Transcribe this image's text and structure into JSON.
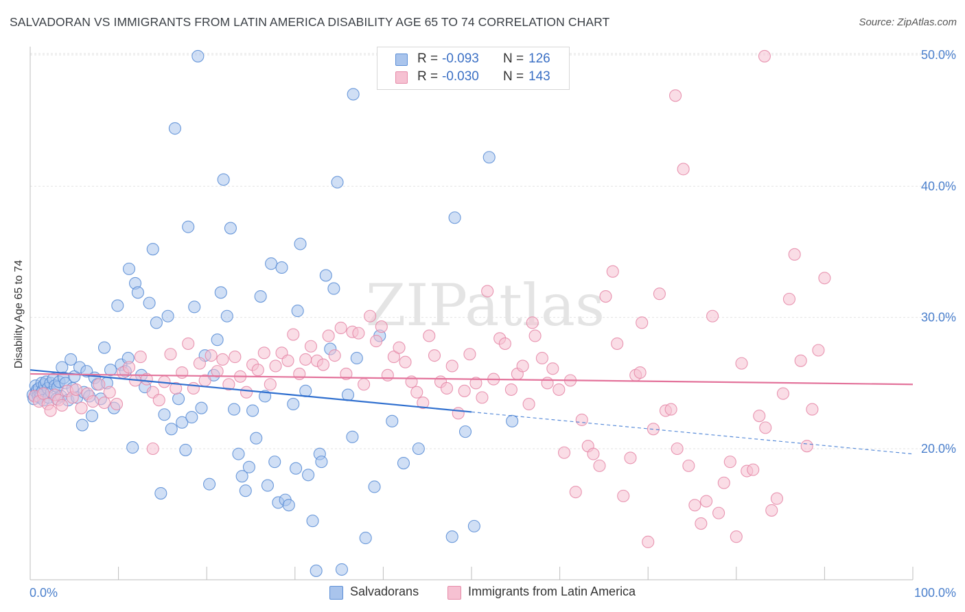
{
  "title": "SALVADORAN VS IMMIGRANTS FROM LATIN AMERICA DISABILITY AGE 65 TO 74 CORRELATION CHART",
  "source": "Source: ZipAtlas.com",
  "watermark": "ZIPatlas",
  "legend_top": [
    {
      "r_label": "R =",
      "r_value": "-0.093",
      "n_label": "N =",
      "n_value": "126",
      "color": "#a9c4ec",
      "border": "#5b8ed6"
    },
    {
      "r_label": "R =",
      "r_value": "-0.030",
      "n_label": "N =",
      "n_value": "143",
      "color": "#f6c1d2",
      "border": "#e68aa8"
    }
  ],
  "legend_bottom": [
    {
      "label": "Salvadorans",
      "color": "#a9c4ec",
      "border": "#5b8ed6"
    },
    {
      "label": "Immigrants from Latin America",
      "color": "#f6c1d2",
      "border": "#e68aa8"
    }
  ],
  "x_axis": {
    "left_label": "0.0%",
    "right_label": "100.0%"
  },
  "chart_data": {
    "type": "scatter",
    "title": "SALVADORAN VS IMMIGRANTS FROM LATIN AMERICA DISABILITY AGE 65 TO 74 CORRELATION CHART",
    "xlabel": "",
    "ylabel": "Disability Age 65 to 74",
    "xlim": [
      0,
      100
    ],
    "ylim": [
      10,
      51.5
    ],
    "y_ticks": [
      20,
      30,
      40,
      50
    ],
    "y_tick_labels": [
      "20.0%",
      "30.0%",
      "40.0%",
      "50.0%"
    ],
    "grid": true,
    "legend_position": "top-center",
    "series": [
      {
        "name": "Salvadorans",
        "color": "#5b8ed6",
        "fill": "#a9c4ec",
        "trend": {
          "x": [
            0,
            50
          ],
          "y": [
            26.0,
            22.8
          ],
          "dashed_to": [
            100,
            19.6
          ]
        },
        "points": [
          [
            0.3,
            24.1
          ],
          [
            0.4,
            23.8
          ],
          [
            0.6,
            24.8
          ],
          [
            0.7,
            24.3
          ],
          [
            0.8,
            24.5
          ],
          [
            0.9,
            24.0
          ],
          [
            1.0,
            24.6
          ],
          [
            1.1,
            23.9
          ],
          [
            1.2,
            24.2
          ],
          [
            1.3,
            25.0
          ],
          [
            1.4,
            24.4
          ],
          [
            1.5,
            23.7
          ],
          [
            1.6,
            24.9
          ],
          [
            1.8,
            25.1
          ],
          [
            2.0,
            24.6
          ],
          [
            2.1,
            23.9
          ],
          [
            2.3,
            25.0
          ],
          [
            2.4,
            24.3
          ],
          [
            2.6,
            25.3
          ],
          [
            2.8,
            24.8
          ],
          [
            3.0,
            23.8
          ],
          [
            3.1,
            24.7
          ],
          [
            3.3,
            25.1
          ],
          [
            3.5,
            24.0
          ],
          [
            3.6,
            26.2
          ],
          [
            3.8,
            25.4
          ],
          [
            4.0,
            25.0
          ],
          [
            4.3,
            23.7
          ],
          [
            4.6,
            26.8
          ],
          [
            4.8,
            24.6
          ],
          [
            5.0,
            25.5
          ],
          [
            5.3,
            23.9
          ],
          [
            5.6,
            26.2
          ],
          [
            5.9,
            21.8
          ],
          [
            6.1,
            24.3
          ],
          [
            6.4,
            25.9
          ],
          [
            6.7,
            24.0
          ],
          [
            7.0,
            22.5
          ],
          [
            7.3,
            25.4
          ],
          [
            7.6,
            24.9
          ],
          [
            8.0,
            23.8
          ],
          [
            8.4,
            27.7
          ],
          [
            8.7,
            25.0
          ],
          [
            9.1,
            26.0
          ],
          [
            9.5,
            23.1
          ],
          [
            9.9,
            30.9
          ],
          [
            10.3,
            26.4
          ],
          [
            10.8,
            25.9
          ],
          [
            11.1,
            26.9
          ],
          [
            11.6,
            20.1
          ],
          [
            11.9,
            32.6
          ],
          [
            12.2,
            31.9
          ],
          [
            12.6,
            25.6
          ],
          [
            13.0,
            24.7
          ],
          [
            13.5,
            31.1
          ],
          [
            13.9,
            35.2
          ],
          [
            14.3,
            29.6
          ],
          [
            14.8,
            16.6
          ],
          [
            15.2,
            22.6
          ],
          [
            15.6,
            30.1
          ],
          [
            16.0,
            21.5
          ],
          [
            16.4,
            44.4
          ],
          [
            16.8,
            23.8
          ],
          [
            17.2,
            22.0
          ],
          [
            17.6,
            19.9
          ],
          [
            17.9,
            36.9
          ],
          [
            18.3,
            22.4
          ],
          [
            18.6,
            30.8
          ],
          [
            19.0,
            49.9
          ],
          [
            19.4,
            23.1
          ],
          [
            19.8,
            27.1
          ],
          [
            20.3,
            17.3
          ],
          [
            20.8,
            25.6
          ],
          [
            21.2,
            28.3
          ],
          [
            21.6,
            31.9
          ],
          [
            21.9,
            40.5
          ],
          [
            22.3,
            30.1
          ],
          [
            22.7,
            36.8
          ],
          [
            23.1,
            23.0
          ],
          [
            23.6,
            19.6
          ],
          [
            24.0,
            17.9
          ],
          [
            24.4,
            16.8
          ],
          [
            24.8,
            18.6
          ],
          [
            25.2,
            22.9
          ],
          [
            25.6,
            20.8
          ],
          [
            26.1,
            31.6
          ],
          [
            26.6,
            24.0
          ],
          [
            26.9,
            17.2
          ],
          [
            27.3,
            34.1
          ],
          [
            27.7,
            19.0
          ],
          [
            28.1,
            15.9
          ],
          [
            28.5,
            33.8
          ],
          [
            28.9,
            16.1
          ],
          [
            29.3,
            15.7
          ],
          [
            29.8,
            23.4
          ],
          [
            30.1,
            18.5
          ],
          [
            30.6,
            35.6
          ],
          [
            31.2,
            24.4
          ],
          [
            31.5,
            18.0
          ],
          [
            32.0,
            14.5
          ],
          [
            32.4,
            10.7
          ],
          [
            32.8,
            19.6
          ],
          [
            33.0,
            19.0
          ],
          [
            33.5,
            33.2
          ],
          [
            34.0,
            27.6
          ],
          [
            34.4,
            32.2
          ],
          [
            34.8,
            40.3
          ],
          [
            35.3,
            10.8
          ],
          [
            36.0,
            24.1
          ],
          [
            36.5,
            20.9
          ],
          [
            37.0,
            26.9
          ],
          [
            38.0,
            13.2
          ],
          [
            39.0,
            17.1
          ],
          [
            39.6,
            28.6
          ],
          [
            41.0,
            22.1
          ],
          [
            42.3,
            18.9
          ],
          [
            44.0,
            20.0
          ],
          [
            47.8,
            13.3
          ],
          [
            48.1,
            37.6
          ],
          [
            49.3,
            21.3
          ],
          [
            50.3,
            14.1
          ],
          [
            52.0,
            42.2
          ],
          [
            54.6,
            22.1
          ],
          [
            36.6,
            47.0
          ],
          [
            30.3,
            30.5
          ],
          [
            11.2,
            33.7
          ]
        ]
      },
      {
        "name": "Immigrants from Latin America",
        "color": "#e68aa8",
        "fill": "#f6c1d2",
        "trend": {
          "x": [
            0,
            100
          ],
          "y": [
            25.7,
            24.9
          ]
        },
        "points": [
          [
            0.5,
            24.0
          ],
          [
            1.0,
            23.6
          ],
          [
            1.5,
            24.2
          ],
          [
            2.0,
            23.4
          ],
          [
            2.3,
            22.9
          ],
          [
            2.8,
            24.1
          ],
          [
            3.2,
            23.7
          ],
          [
            3.6,
            23.3
          ],
          [
            4.2,
            24.4
          ],
          [
            4.8,
            23.9
          ],
          [
            5.2,
            24.5
          ],
          [
            5.8,
            23.1
          ],
          [
            6.5,
            24.2
          ],
          [
            7.1,
            23.6
          ],
          [
            7.8,
            24.9
          ],
          [
            8.4,
            23.5
          ],
          [
            9.0,
            24.3
          ],
          [
            9.8,
            23.4
          ],
          [
            10.5,
            25.8
          ],
          [
            11.2,
            26.2
          ],
          [
            11.9,
            25.2
          ],
          [
            12.5,
            27.0
          ],
          [
            13.2,
            25.3
          ],
          [
            13.9,
            24.3
          ],
          [
            14.6,
            23.7
          ],
          [
            15.2,
            25.1
          ],
          [
            15.9,
            27.2
          ],
          [
            16.5,
            24.6
          ],
          [
            17.2,
            25.8
          ],
          [
            17.9,
            28.0
          ],
          [
            18.5,
            24.6
          ],
          [
            19.2,
            26.5
          ],
          [
            19.8,
            25.2
          ],
          [
            20.5,
            27.1
          ],
          [
            21.2,
            25.9
          ],
          [
            21.8,
            26.8
          ],
          [
            22.5,
            24.9
          ],
          [
            23.2,
            27.0
          ],
          [
            23.8,
            25.5
          ],
          [
            24.5,
            24.3
          ],
          [
            25.2,
            26.4
          ],
          [
            25.8,
            26.0
          ],
          [
            26.5,
            27.3
          ],
          [
            27.2,
            24.9
          ],
          [
            27.8,
            26.3
          ],
          [
            28.5,
            27.3
          ],
          [
            29.2,
            26.7
          ],
          [
            29.8,
            28.7
          ],
          [
            30.5,
            25.7
          ],
          [
            31.2,
            26.8
          ],
          [
            31.8,
            27.8
          ],
          [
            32.5,
            26.7
          ],
          [
            33.2,
            26.4
          ],
          [
            33.8,
            28.6
          ],
          [
            34.5,
            27.1
          ],
          [
            35.2,
            29.2
          ],
          [
            35.8,
            25.7
          ],
          [
            36.5,
            28.9
          ],
          [
            37.2,
            28.8
          ],
          [
            37.8,
            24.9
          ],
          [
            38.5,
            30.1
          ],
          [
            39.2,
            28.2
          ],
          [
            39.8,
            29.3
          ],
          [
            40.5,
            25.6
          ],
          [
            41.2,
            27.0
          ],
          [
            41.8,
            27.7
          ],
          [
            42.5,
            26.6
          ],
          [
            43.2,
            25.1
          ],
          [
            43.8,
            24.3
          ],
          [
            44.5,
            23.5
          ],
          [
            45.2,
            28.6
          ],
          [
            45.8,
            27.1
          ],
          [
            46.5,
            25.1
          ],
          [
            47.2,
            24.6
          ],
          [
            47.8,
            26.3
          ],
          [
            48.5,
            22.7
          ],
          [
            49.2,
            24.4
          ],
          [
            49.8,
            27.2
          ],
          [
            50.5,
            25.0
          ],
          [
            51.2,
            23.9
          ],
          [
            51.8,
            32.0
          ],
          [
            52.5,
            25.3
          ],
          [
            53.2,
            28.4
          ],
          [
            53.8,
            28.0
          ],
          [
            54.5,
            24.5
          ],
          [
            55.2,
            25.7
          ],
          [
            55.8,
            26.3
          ],
          [
            56.5,
            23.4
          ],
          [
            57.2,
            28.6
          ],
          [
            58.0,
            26.9
          ],
          [
            58.6,
            25.0
          ],
          [
            59.2,
            26.1
          ],
          [
            59.9,
            24.5
          ],
          [
            60.5,
            19.7
          ],
          [
            61.2,
            25.2
          ],
          [
            61.8,
            16.7
          ],
          [
            62.5,
            22.2
          ],
          [
            63.2,
            20.2
          ],
          [
            63.8,
            19.6
          ],
          [
            64.5,
            18.7
          ],
          [
            65.2,
            31.6
          ],
          [
            66.0,
            33.5
          ],
          [
            66.5,
            28.0
          ],
          [
            67.2,
            16.4
          ],
          [
            68.0,
            19.3
          ],
          [
            68.6,
            25.6
          ],
          [
            69.3,
            29.6
          ],
          [
            70.0,
            12.9
          ],
          [
            70.6,
            21.5
          ],
          [
            71.3,
            31.8
          ],
          [
            72.0,
            22.9
          ],
          [
            72.6,
            23.0
          ],
          [
            73.3,
            20.0
          ],
          [
            74.0,
            41.3
          ],
          [
            74.6,
            18.7
          ],
          [
            75.3,
            15.7
          ],
          [
            76.0,
            14.3
          ],
          [
            76.6,
            16.0
          ],
          [
            77.3,
            30.1
          ],
          [
            78.0,
            15.1
          ],
          [
            78.6,
            17.4
          ],
          [
            79.3,
            19.0
          ],
          [
            80.0,
            13.3
          ],
          [
            80.6,
            26.5
          ],
          [
            81.2,
            18.3
          ],
          [
            81.9,
            18.4
          ],
          [
            82.6,
            22.5
          ],
          [
            83.3,
            21.6
          ],
          [
            84.0,
            15.3
          ],
          [
            84.6,
            16.2
          ],
          [
            85.3,
            24.2
          ],
          [
            86.0,
            31.4
          ],
          [
            86.6,
            34.8
          ],
          [
            87.3,
            26.7
          ],
          [
            88.0,
            20.2
          ],
          [
            88.6,
            23.0
          ],
          [
            89.3,
            27.5
          ],
          [
            90.0,
            33.0
          ],
          [
            56.9,
            29.6
          ],
          [
            69.1,
            25.8
          ],
          [
            83.2,
            49.9
          ],
          [
            73.1,
            46.9
          ],
          [
            13.9,
            20.0
          ]
        ]
      }
    ]
  }
}
